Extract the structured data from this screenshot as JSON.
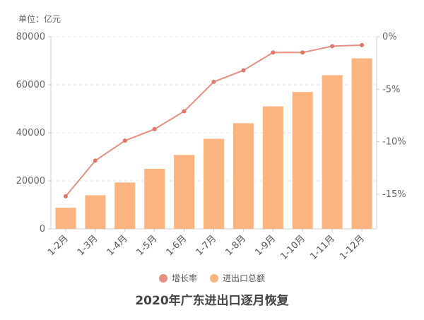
{
  "chart_data": {
    "type": "bar",
    "title": "2020年广东进出口逐月恢复",
    "unit_label": "单位：亿元",
    "categories": [
      "1-2月",
      "1-3月",
      "1-4月",
      "1-5月",
      "1-6月",
      "1-7月",
      "1-8月",
      "1-9月",
      "1-10月",
      "1-11月",
      "1-12月"
    ],
    "series": [
      {
        "name": "进出口总额",
        "type": "bar",
        "axis": "left",
        "color": "#FBB47F",
        "values": [
          8800,
          14000,
          19300,
          25000,
          30800,
          37500,
          44000,
          51000,
          57000,
          64000,
          71000
        ]
      },
      {
        "name": "增长率",
        "type": "line",
        "axis": "right",
        "color": "#E89080",
        "values": [
          -15.2,
          -11.8,
          -9.9,
          -8.8,
          -7.1,
          -4.3,
          -3.2,
          -1.5,
          -1.5,
          -0.9,
          -0.8
        ]
      }
    ],
    "y_left": {
      "ylim": [
        0,
        80000
      ],
      "ticks": [
        0,
        20000,
        40000,
        60000,
        80000
      ]
    },
    "y_right": {
      "ylim": [
        -18.3,
        0
      ],
      "ticks": [
        0,
        -5,
        -10,
        -15
      ],
      "tick_labels": [
        "0%",
        "-5%",
        "-10%",
        "-15%"
      ]
    },
    "grid": true,
    "legend_position": "bottom"
  }
}
